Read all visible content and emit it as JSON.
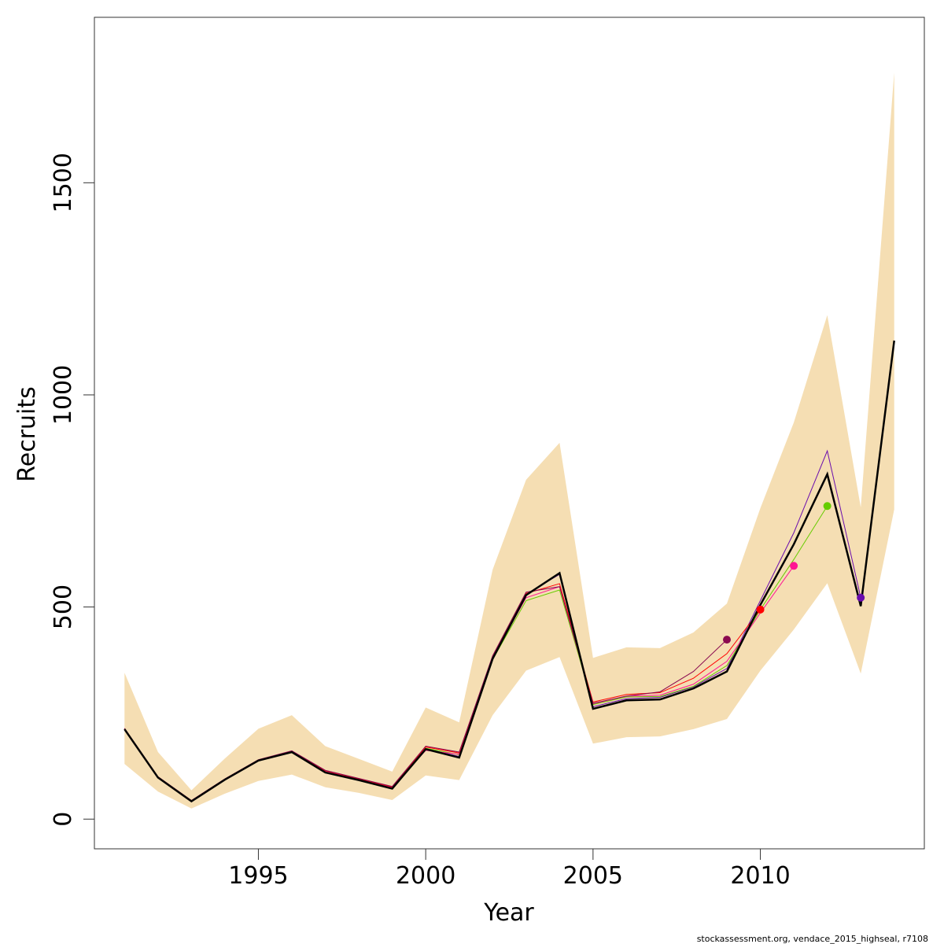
{
  "chart_data": {
    "type": "line",
    "title": "",
    "xlabel": "Year",
    "ylabel": "Recruits",
    "xlim": [
      1990.1,
      2014.9
    ],
    "ylim": [
      -70,
      1890
    ],
    "x_ticks": [
      1995,
      2000,
      2005,
      2010
    ],
    "y_ticks": [
      0,
      500,
      1000,
      1500
    ],
    "x_tick_labels": [
      "1995",
      "2000",
      "2005",
      "2010"
    ],
    "y_tick_labels": [
      "0",
      "500",
      "1000",
      "1500"
    ],
    "grid": false,
    "legend": "none",
    "credit": "stockassessment.org, vendace_2015_highseal, r7108",
    "colors": {
      "band": "#f5deb3",
      "main": "#000000",
      "peel_2013": "#6a0dad",
      "peel_2012": "#66cc00",
      "peel_2011": "#ff1493",
      "peel_2010": "#ff0000",
      "peel_2009": "#8b0a50"
    },
    "confidence_band": {
      "x": [
        1991,
        1992,
        1993,
        1994,
        1995,
        1996,
        1997,
        1998,
        1999,
        2000,
        2001,
        2002,
        2003,
        2004,
        2005,
        2006,
        2007,
        2008,
        2009,
        2010,
        2011,
        2012,
        2013,
        2014
      ],
      "lower": [
        130,
        65,
        25,
        60,
        90,
        105,
        75,
        62,
        45,
        103,
        92,
        245,
        350,
        382,
        178,
        193,
        195,
        212,
        236,
        350,
        447,
        556,
        343,
        730
      ],
      "upper": [
        345,
        158,
        68,
        143,
        213,
        245,
        172,
        142,
        112,
        263,
        228,
        588,
        800,
        887,
        380,
        405,
        403,
        440,
        508,
        733,
        935,
        1188,
        735,
        1760
      ]
    },
    "main_series": {
      "name": "",
      "x": [
        1991,
        1992,
        1993,
        1994,
        1995,
        1996,
        1997,
        1998,
        1999,
        2000,
        2001,
        2002,
        2003,
        2004,
        2005,
        2006,
        2007,
        2008,
        2009,
        2010,
        2011,
        2012,
        2013,
        2014
      ],
      "values": [
        212,
        98,
        42,
        93,
        138,
        158,
        110,
        92,
        72,
        165,
        145,
        378,
        528,
        580,
        260,
        280,
        282,
        308,
        348,
        505,
        648,
        813,
        502,
        1128
      ]
    },
    "retro_series": [
      {
        "name": "",
        "color": "#6a0dad",
        "x": [
          1991,
          1992,
          1993,
          1994,
          1995,
          1996,
          1997,
          1998,
          1999,
          2000,
          2001,
          2002,
          2003,
          2004,
          2005,
          2006,
          2007,
          2008,
          2009,
          2010,
          2011,
          2012,
          2013
        ],
        "values": [
          213,
          99,
          43,
          94,
          139,
          159,
          111,
          93,
          73,
          166,
          148,
          380,
          530,
          577,
          265,
          284,
          287,
          312,
          355,
          515,
          675,
          868,
          522
        ],
        "endpoint": {
          "x": 2013,
          "y": 522
        }
      },
      {
        "name": "",
        "color": "#66cc00",
        "x": [
          1991,
          1992,
          1993,
          1994,
          1995,
          1996,
          1997,
          1998,
          1999,
          2000,
          2001,
          2002,
          2003,
          2004,
          2005,
          2006,
          2007,
          2008,
          2009,
          2010,
          2011,
          2012
        ],
        "values": [
          213,
          99,
          43,
          94,
          139,
          159,
          112,
          93,
          74,
          167,
          152,
          376,
          515,
          540,
          270,
          288,
          289,
          313,
          362,
          494,
          612,
          738
        ],
        "endpoint": {
          "x": 2012,
          "y": 738
        }
      },
      {
        "name": "",
        "color": "#ff1493",
        "x": [
          1991,
          1992,
          1993,
          1994,
          1995,
          1996,
          1997,
          1998,
          1999,
          2000,
          2001,
          2002,
          2003,
          2004,
          2005,
          2006,
          2007,
          2008,
          2009,
          2010,
          2011
        ],
        "values": [
          213,
          99,
          43,
          94,
          138,
          158,
          112,
          94,
          75,
          162,
          153,
          380,
          522,
          548,
          272,
          290,
          292,
          318,
          372,
          486,
          597
        ],
        "endpoint": {
          "x": 2011,
          "y": 597
        }
      },
      {
        "name": "",
        "color": "#ff0000",
        "x": [
          1991,
          1992,
          1993,
          1994,
          1995,
          1996,
          1997,
          1998,
          1999,
          2000,
          2001,
          2002,
          2003,
          2004,
          2005,
          2006,
          2007,
          2008,
          2009,
          2010
        ],
        "values": [
          213,
          99,
          43,
          94,
          139,
          160,
          114,
          95,
          76,
          170,
          156,
          383,
          532,
          555,
          276,
          294,
          298,
          332,
          390,
          494
        ],
        "endpoint": {
          "x": 2010,
          "y": 494
        }
      },
      {
        "name": "",
        "color": "#8b0a50",
        "x": [
          1991,
          1992,
          1993,
          1994,
          1995,
          1996,
          1997,
          1998,
          1999,
          2000,
          2001,
          2002,
          2003,
          2004,
          2005,
          2006,
          2007,
          2008,
          2009
        ],
        "values": [
          214,
          100,
          44,
          95,
          140,
          161,
          115,
          96,
          77,
          172,
          158,
          385,
          535,
          548,
          273,
          290,
          300,
          348,
          423
        ],
        "endpoint": {
          "x": 2009,
          "y": 423
        }
      }
    ]
  }
}
